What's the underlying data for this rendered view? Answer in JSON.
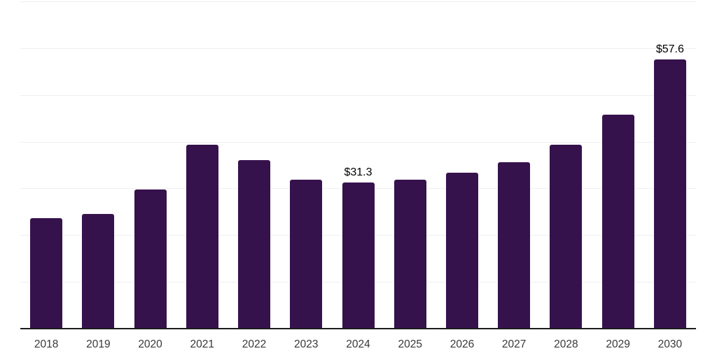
{
  "chart": {
    "background_color": "#ffffff",
    "bar_color": "#36124D",
    "axis_line_color": "#1c1c1c",
    "gridline_color": "#efefef",
    "tick_label_color": "#383838",
    "value_label_color": "#000000"
  },
  "chart_data": {
    "type": "bar",
    "categories": [
      "2018",
      "2019",
      "2020",
      "2021",
      "2022",
      "2023",
      "2024",
      "2025",
      "2026",
      "2027",
      "2028",
      "2029",
      "2030"
    ],
    "values": [
      23.7,
      24.5,
      29.8,
      39.4,
      36.0,
      31.9,
      31.3,
      31.9,
      33.3,
      35.6,
      39.4,
      45.8,
      57.6
    ],
    "data_labels": [
      "",
      "",
      "",
      "",
      "",
      "",
      "$31.3",
      "",
      "",
      "",
      "",
      "",
      "$57.6"
    ],
    "title": "",
    "xlabel": "",
    "ylabel": "",
    "ylim": [
      0,
      70
    ],
    "gridline_step": 10,
    "grid": true,
    "legend": false,
    "y_axis_labels_shown": false
  }
}
